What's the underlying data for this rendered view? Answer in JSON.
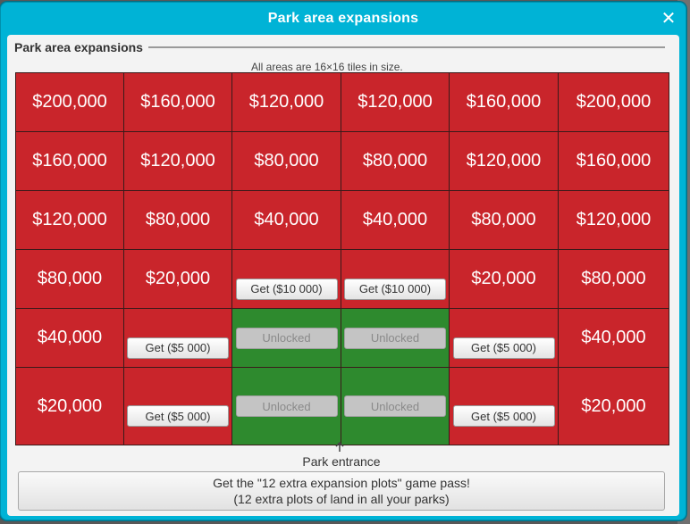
{
  "window": {
    "title": "Park area expansions",
    "close_glyph": "✕"
  },
  "section": {
    "title": "Park area expansions",
    "size_note": "All areas are 16×16 tiles in size."
  },
  "grid": {
    "rows": [
      [
        {
          "type": "price",
          "label": "$200,000"
        },
        {
          "type": "price",
          "label": "$160,000"
        },
        {
          "type": "price",
          "label": "$120,000"
        },
        {
          "type": "price",
          "label": "$120,000"
        },
        {
          "type": "price",
          "label": "$160,000"
        },
        {
          "type": "price",
          "label": "$200,000"
        }
      ],
      [
        {
          "type": "price",
          "label": "$160,000"
        },
        {
          "type": "price",
          "label": "$120,000"
        },
        {
          "type": "price",
          "label": "$80,000"
        },
        {
          "type": "price",
          "label": "$80,000"
        },
        {
          "type": "price",
          "label": "$120,000"
        },
        {
          "type": "price",
          "label": "$160,000"
        }
      ],
      [
        {
          "type": "price",
          "label": "$120,000"
        },
        {
          "type": "price",
          "label": "$80,000"
        },
        {
          "type": "price",
          "label": "$40,000"
        },
        {
          "type": "price",
          "label": "$40,000"
        },
        {
          "type": "price",
          "label": "$80,000"
        },
        {
          "type": "price",
          "label": "$120,000"
        }
      ],
      [
        {
          "type": "price",
          "label": "$80,000"
        },
        {
          "type": "price",
          "label": "$20,000"
        },
        {
          "type": "get",
          "label": "Get ($10 000)"
        },
        {
          "type": "get",
          "label": "Get ($10 000)"
        },
        {
          "type": "price",
          "label": "$20,000"
        },
        {
          "type": "price",
          "label": "$80,000"
        }
      ],
      [
        {
          "type": "price",
          "label": "$40,000"
        },
        {
          "type": "get",
          "label": "Get ($5 000)"
        },
        {
          "type": "unlocked",
          "label": "Unlocked"
        },
        {
          "type": "unlocked",
          "label": "Unlocked"
        },
        {
          "type": "get",
          "label": "Get ($5 000)"
        },
        {
          "type": "price",
          "label": "$40,000"
        }
      ],
      [
        {
          "type": "price",
          "label": "$20,000"
        },
        {
          "type": "get",
          "label": "Get ($5 000)"
        },
        {
          "type": "unlocked",
          "label": "Unlocked"
        },
        {
          "type": "unlocked",
          "label": "Unlocked"
        },
        {
          "type": "get",
          "label": "Get ($5 000)"
        },
        {
          "type": "price",
          "label": "$20,000"
        }
      ]
    ]
  },
  "entrance": {
    "label": "Park entrance",
    "arrow_icon": "up-arrow-icon"
  },
  "gamepass": {
    "line1": "Get the \"12 extra expansion plots\" game pass!",
    "line2": "(12 extra plots of land in all your parks)"
  },
  "colors": {
    "window": "#00b3d6",
    "locked": "#c9252b",
    "unlocked": "#2e8a2e"
  }
}
